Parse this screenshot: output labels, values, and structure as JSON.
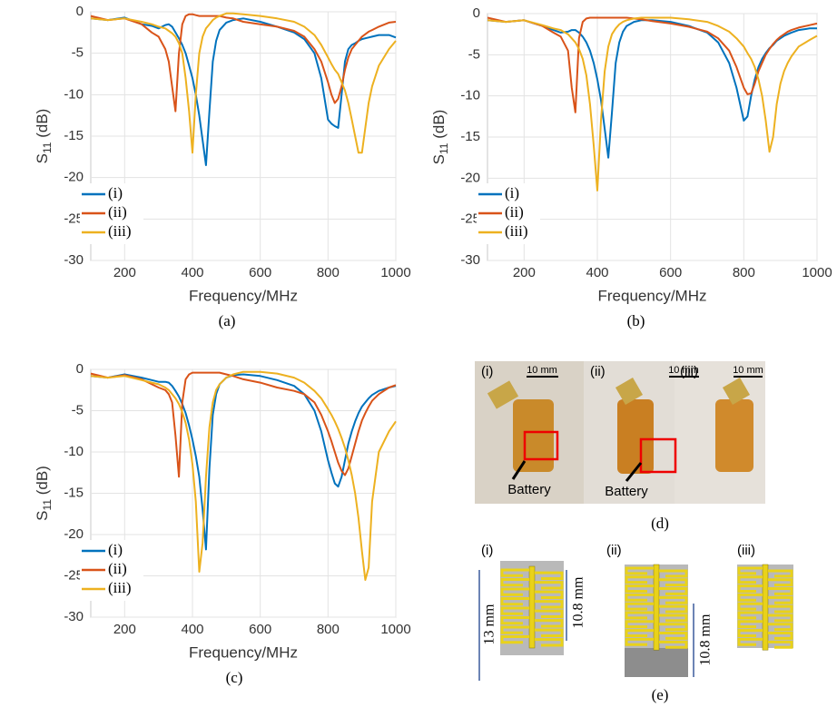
{
  "chart_data": [
    {
      "type": "line",
      "caption": "(a)",
      "xlabel": "Frequency/MHz",
      "ylabel": [
        "S",
        "11",
        " (dB)"
      ],
      "x": [
        100,
        150,
        200,
        250,
        280,
        300,
        320,
        330,
        340,
        350,
        360,
        370,
        380,
        390,
        400,
        410,
        420,
        430,
        440,
        450,
        460,
        470,
        480,
        500,
        520,
        550,
        600,
        650,
        700,
        730,
        760,
        780,
        800,
        810,
        820,
        830,
        840,
        850,
        860,
        870,
        880,
        890,
        900,
        910,
        920,
        930,
        950,
        980,
        1000
      ],
      "series": [
        {
          "name": "(i)",
          "color": "#0072bd",
          "values": [
            -0.8,
            -1,
            -0.7,
            -1.5,
            -1.7,
            -2,
            -1.6,
            -1.5,
            -1.8,
            -2.5,
            -3.2,
            -4,
            -5,
            -6.5,
            -8,
            -10,
            -12.5,
            -15.5,
            -18.5,
            -12,
            -6,
            -3.5,
            -2.2,
            -1.3,
            -1,
            -0.8,
            -1.2,
            -1.8,
            -2.5,
            -3.3,
            -5,
            -8,
            -13,
            -13.5,
            -13.8,
            -14,
            -10,
            -6,
            -4.5,
            -4,
            -3.8,
            -3.5,
            -3.3,
            -3.2,
            -3.1,
            -3,
            -2.8,
            -2.8,
            -3.1
          ]
        },
        {
          "name": "(ii)",
          "color": "#d95319",
          "values": [
            -0.5,
            -1,
            -0.8,
            -1.5,
            -2.5,
            -3,
            -4.5,
            -6,
            -9,
            -12,
            -5,
            -1.5,
            -0.5,
            -0.3,
            -0.3,
            -0.4,
            -0.5,
            -0.5,
            -0.5,
            -0.5,
            -0.5,
            -0.5,
            -0.5,
            -0.7,
            -0.8,
            -1.2,
            -1.5,
            -1.8,
            -2.3,
            -3,
            -4.5,
            -6,
            -8.5,
            -10,
            -11,
            -10.5,
            -9,
            -7,
            -5.5,
            -4.5,
            -4,
            -3.5,
            -3,
            -2.7,
            -2.4,
            -2.2,
            -1.8,
            -1.3,
            -1.2
          ]
        },
        {
          "name": "(iii)",
          "color": "#edb120",
          "values": [
            -0.8,
            -1,
            -0.8,
            -1.2,
            -1.5,
            -1.8,
            -2,
            -2.3,
            -2.6,
            -3,
            -3.8,
            -5,
            -8,
            -12,
            -17,
            -10,
            -5,
            -3,
            -2,
            -1.5,
            -1,
            -0.7,
            -0.5,
            -0.2,
            -0.2,
            -0.3,
            -0.5,
            -0.8,
            -1.2,
            -1.8,
            -2.8,
            -4,
            -5.5,
            -6.3,
            -7,
            -7.5,
            -8.5,
            -9.5,
            -11,
            -13,
            -15,
            -17,
            -17,
            -14,
            -11,
            -9,
            -6.5,
            -4.5,
            -3.5
          ]
        }
      ],
      "xlim": [
        100,
        1000
      ],
      "ylim": [
        -30,
        0
      ],
      "xticks": [
        200,
        400,
        600,
        800,
        1000
      ],
      "yticks": [
        0,
        -5,
        -10,
        -15,
        -20,
        -25,
        -30
      ],
      "grid": true,
      "legend": "lower left"
    },
    {
      "type": "line",
      "caption": "(b)",
      "xlabel": "Frequency/MHz",
      "ylabel": [
        "S",
        "11",
        " (dB)"
      ],
      "x": [
        100,
        150,
        200,
        250,
        280,
        300,
        320,
        330,
        340,
        350,
        360,
        370,
        380,
        390,
        400,
        410,
        420,
        430,
        440,
        450,
        460,
        470,
        480,
        500,
        520,
        550,
        600,
        650,
        700,
        730,
        760,
        780,
        800,
        810,
        820,
        830,
        840,
        850,
        860,
        870,
        880,
        890,
        900,
        910,
        920,
        930,
        950,
        980,
        1000
      ],
      "series": [
        {
          "name": "(i)",
          "color": "#0072bd",
          "values": [
            -0.8,
            -1,
            -0.8,
            -1.5,
            -2,
            -2.3,
            -2.2,
            -2,
            -2,
            -2.3,
            -2.8,
            -3.5,
            -4.5,
            -6,
            -8,
            -10.5,
            -14,
            -17.5,
            -12,
            -6,
            -3.5,
            -2.2,
            -1.5,
            -1,
            -0.8,
            -0.8,
            -1,
            -1.5,
            -2.3,
            -3.5,
            -6,
            -9,
            -13,
            -12.5,
            -10,
            -8,
            -6.5,
            -5.5,
            -4.8,
            -4.2,
            -3.8,
            -3.3,
            -3,
            -2.7,
            -2.5,
            -2.3,
            -2,
            -1.8,
            -1.8
          ]
        },
        {
          "name": "(ii)",
          "color": "#d95319",
          "values": [
            -0.5,
            -1,
            -0.8,
            -1.5,
            -2.3,
            -2.8,
            -4.5,
            -9,
            -12,
            -3,
            -1,
            -0.6,
            -0.5,
            -0.5,
            -0.5,
            -0.5,
            -0.5,
            -0.5,
            -0.5,
            -0.5,
            -0.5,
            -0.5,
            -0.5,
            -0.6,
            -0.7,
            -0.9,
            -1.2,
            -1.6,
            -2.2,
            -3,
            -4.5,
            -6.5,
            -9,
            -9.8,
            -9.7,
            -8.5,
            -7,
            -6,
            -5,
            -4.3,
            -3.7,
            -3.2,
            -2.8,
            -2.5,
            -2.2,
            -2,
            -1.7,
            -1.4,
            -1.2
          ]
        },
        {
          "name": "(iii)",
          "color": "#edb120",
          "values": [
            -0.8,
            -1,
            -0.8,
            -1.4,
            -1.8,
            -2,
            -2.5,
            -3,
            -3.5,
            -4.3,
            -5.5,
            -7.5,
            -11,
            -16,
            -21.5,
            -13,
            -7,
            -4,
            -2.5,
            -1.8,
            -1.3,
            -1,
            -0.8,
            -0.6,
            -0.5,
            -0.5,
            -0.5,
            -0.7,
            -1,
            -1.5,
            -2.2,
            -3,
            -4,
            -4.8,
            -5.5,
            -6.5,
            -8,
            -10,
            -13,
            -16.8,
            -15,
            -11,
            -8.5,
            -7,
            -6,
            -5.2,
            -4,
            -3.2,
            -2.7
          ]
        }
      ],
      "xlim": [
        100,
        1000
      ],
      "ylim": [
        -30,
        0
      ],
      "xticks": [
        200,
        400,
        600,
        800,
        1000
      ],
      "yticks": [
        0,
        -5,
        -10,
        -15,
        -20,
        -25,
        -30
      ],
      "grid": true,
      "legend": "lower left"
    },
    {
      "type": "line",
      "caption": "(c)",
      "xlabel": "Frequency/MHz",
      "ylabel": [
        "S",
        "11",
        " (dB)"
      ],
      "x": [
        100,
        150,
        200,
        250,
        280,
        300,
        320,
        330,
        340,
        350,
        360,
        370,
        380,
        390,
        400,
        410,
        420,
        430,
        440,
        450,
        460,
        470,
        480,
        500,
        520,
        550,
        600,
        650,
        700,
        730,
        760,
        780,
        800,
        810,
        820,
        830,
        840,
        850,
        860,
        870,
        880,
        890,
        900,
        910,
        920,
        930,
        950,
        980,
        1000
      ],
      "series": [
        {
          "name": "(i)",
          "color": "#0072bd",
          "values": [
            -0.8,
            -1,
            -0.6,
            -1,
            -1.3,
            -1.5,
            -1.5,
            -1.6,
            -2,
            -2.6,
            -3.3,
            -4.2,
            -5.3,
            -6.8,
            -8.5,
            -10.5,
            -13,
            -17,
            -21.8,
            -12,
            -5.5,
            -3,
            -1.8,
            -1,
            -0.7,
            -0.6,
            -0.8,
            -1.3,
            -2,
            -3,
            -5,
            -7.5,
            -11,
            -12.5,
            -13.8,
            -14.2,
            -13,
            -11,
            -9,
            -7.5,
            -6.3,
            -5.3,
            -4.5,
            -4,
            -3.5,
            -3.1,
            -2.6,
            -2.2,
            -2
          ]
        },
        {
          "name": "(ii)",
          "color": "#d95319",
          "values": [
            -0.5,
            -1,
            -0.7,
            -1.2,
            -1.8,
            -2.2,
            -2.5,
            -3,
            -4,
            -8,
            -13,
            -4,
            -1.2,
            -0.6,
            -0.4,
            -0.4,
            -0.4,
            -0.4,
            -0.4,
            -0.4,
            -0.4,
            -0.4,
            -0.4,
            -0.6,
            -0.8,
            -1.2,
            -1.6,
            -2.2,
            -2.6,
            -3,
            -4,
            -5.5,
            -7.5,
            -8.7,
            -10,
            -11.3,
            -12.3,
            -12.8,
            -12,
            -10.5,
            -9,
            -7.5,
            -6.2,
            -5.3,
            -4.5,
            -3.8,
            -3,
            -2.2,
            -1.9
          ]
        },
        {
          "name": "(iii)",
          "color": "#edb120",
          "values": [
            -0.8,
            -1,
            -0.8,
            -1.3,
            -1.6,
            -1.8,
            -2.2,
            -2.5,
            -3,
            -3.5,
            -4.2,
            -5.2,
            -6.5,
            -8.5,
            -11.5,
            -16,
            -24.5,
            -21,
            -13,
            -7,
            -4,
            -2.5,
            -1.8,
            -1,
            -0.6,
            -0.3,
            -0.3,
            -0.5,
            -1,
            -1.6,
            -2.6,
            -3.5,
            -4.8,
            -5.5,
            -6.3,
            -7.2,
            -8.3,
            -9.5,
            -11,
            -12.8,
            -15,
            -18,
            -22,
            -25.5,
            -24,
            -16,
            -10,
            -7.5,
            -6.3
          ]
        }
      ],
      "xlim": [
        100,
        1000
      ],
      "ylim": [
        -30,
        0
      ],
      "xticks": [
        200,
        400,
        600,
        800,
        1000
      ],
      "yticks": [
        0,
        -5,
        -10,
        -15,
        -20,
        -25,
        -30
      ],
      "grid": true,
      "legend": "lower left"
    }
  ],
  "photos": {
    "panels": [
      {
        "label": "(i)",
        "scale": "10 mm",
        "note": "Battery"
      },
      {
        "label": "(ii)",
        "scale": "10 mm",
        "note": "Battery"
      },
      {
        "label": "(iii)",
        "scale": "10 mm"
      }
    ],
    "caption": "(d)"
  },
  "diagrams": {
    "panels": [
      {
        "label": "(i)",
        "dims": [
          "13 mm",
          "10.8 mm"
        ]
      },
      {
        "label": "(ii)",
        "dims": [
          "10.8 mm"
        ]
      },
      {
        "label": "(iii)"
      }
    ],
    "caption": "(e)"
  }
}
